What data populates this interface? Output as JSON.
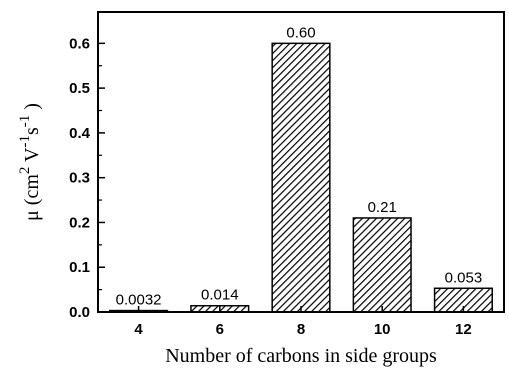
{
  "chart_data": {
    "type": "bar",
    "categories": [
      "4",
      "6",
      "8",
      "10",
      "12"
    ],
    "values": [
      0.0032,
      0.014,
      0.6,
      0.21,
      0.053
    ],
    "data_labels": [
      "0.0032",
      "0.014",
      "0.60",
      "0.21",
      "0.053"
    ],
    "xlabel": "Number of carbons in side groups",
    "ylabel": {
      "prefix": "μ (cm",
      "exp1": "2",
      "mid1": " V",
      "exp2": "-1",
      "mid2": "s",
      "exp3": "-1",
      "suffix": " )"
    },
    "yticks": [
      "0.0",
      "0.1",
      "0.2",
      "0.3",
      "0.4",
      "0.5",
      "0.6"
    ],
    "ylim": [
      0,
      0.67
    ],
    "grid": false,
    "bar_fill": "hatched",
    "bar_color": "#000000"
  }
}
